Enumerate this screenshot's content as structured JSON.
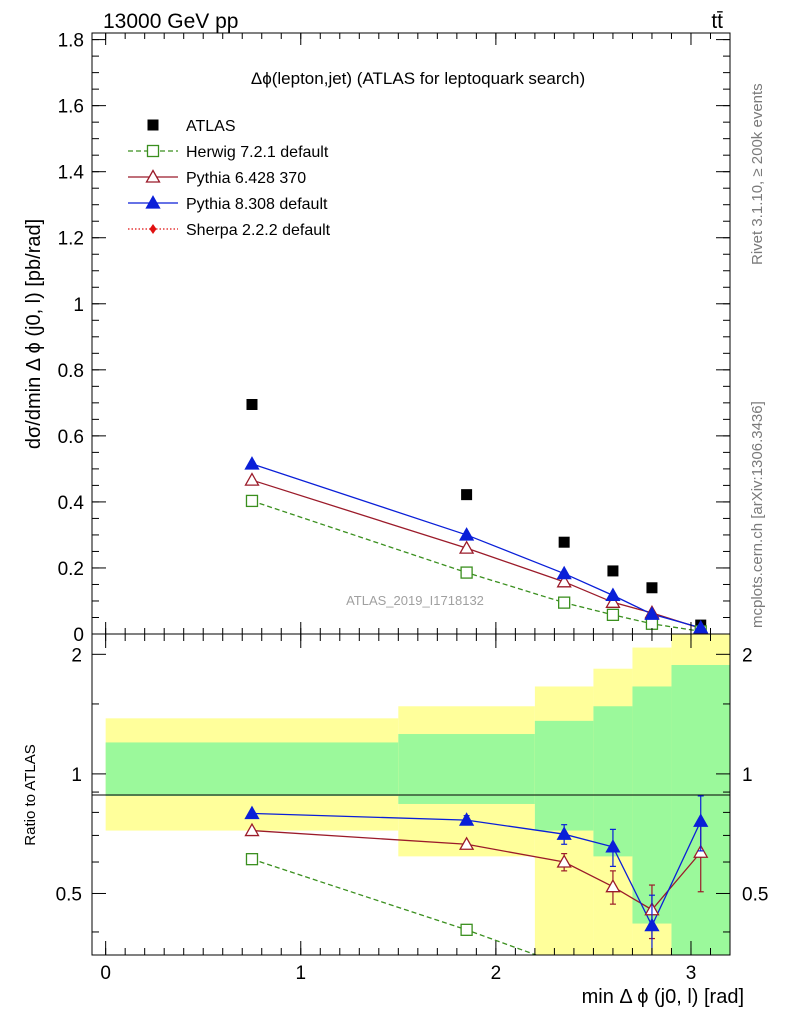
{
  "header": {
    "energy": "13000 GeV pp",
    "process": "tt̄"
  },
  "side_labels": {
    "rivet": "Rivet 3.1.10, ≥ 200k events",
    "mcplots": "mcplots.cern.ch [arXiv:1306.3436]"
  },
  "colors": {
    "atlas": "#000000",
    "herwig": "#3a8f1e",
    "pythia6": "#9b1b2a",
    "pythia8": "#0a1fd8",
    "sherpa": "#e01010",
    "band_inner": "#9bf99b",
    "band_outer": "#ffff9b"
  },
  "chart_data": [
    {
      "type": "scatter",
      "panel": "main",
      "title": "Δϕ(lepton,jet) (ATLAS for leptoquark search)",
      "ylabel": "dσ/dmin Δ ϕ (j0, l) [pb/rad]",
      "watermark": "ATLAS_2019_I1718132",
      "xlim": [
        -0.07,
        3.2
      ],
      "ylim": [
        0,
        1.82
      ],
      "yticks": [
        0,
        0.2,
        0.4,
        0.6,
        0.8,
        1,
        1.2,
        1.4,
        1.6,
        1.8
      ],
      "ytick_labels": [
        "0",
        "0.2",
        "0.4",
        "0.6",
        "0.8",
        "1",
        "1.2",
        "1.4",
        "1.6",
        "1.8"
      ],
      "legend_position": "top-left",
      "series": [
        {
          "name": "ATLAS",
          "key": "atlas",
          "marker": "square-filled",
          "line": "none",
          "x": [
            0.75,
            1.85,
            2.35,
            2.6,
            2.8,
            3.05
          ],
          "y": [
            0.695,
            0.422,
            0.278,
            0.191,
            0.14,
            0.027
          ]
        },
        {
          "name": "Herwig 7.2.1 default",
          "key": "herwig",
          "marker": "square-open",
          "line": "dashed",
          "x": [
            0.75,
            1.85,
            2.35,
            2.6,
            2.8,
            3.05
          ],
          "y": [
            0.403,
            0.186,
            0.095,
            0.058,
            0.031,
            0.008
          ]
        },
        {
          "name": "Pythia 6.428 370",
          "key": "pythia6",
          "marker": "triangle-open",
          "line": "solid",
          "x": [
            0.75,
            1.85,
            2.35,
            2.6,
            2.8,
            3.05
          ],
          "y": [
            0.466,
            0.26,
            0.158,
            0.096,
            0.064,
            0.017
          ]
        },
        {
          "name": "Pythia 8.308 default",
          "key": "pythia8",
          "marker": "triangle-filled",
          "line": "solid",
          "x": [
            0.75,
            1.85,
            2.35,
            2.6,
            2.8,
            3.05
          ],
          "y": [
            0.515,
            0.3,
            0.183,
            0.117,
            0.06,
            0.019
          ]
        },
        {
          "name": "Sherpa 2.2.2 default",
          "key": "sherpa",
          "marker": "diamond-filled",
          "line": "dotted",
          "x": [],
          "y": []
        }
      ]
    },
    {
      "type": "line",
      "panel": "ratio",
      "ylabel": "Ratio to ATLAS",
      "xlabel": "min Δ ϕ (j0, l) [rad]",
      "xlim": [
        -0.07,
        3.2
      ],
      "ylim": [
        0.35,
        2.25
      ],
      "yticks": [
        0.5,
        1,
        2
      ],
      "ytick_labels": [
        "0.5",
        "1",
        "2"
      ],
      "xticks": [
        0,
        1,
        2,
        3
      ],
      "xtick_labels": [
        "0",
        "1",
        "2",
        "3"
      ],
      "reference": 1,
      "bands": [
        {
          "x0": 0.0,
          "x1": 1.5,
          "inner": [
            0.88,
            1.2
          ],
          "outer": [
            0.72,
            1.38
          ]
        },
        {
          "x0": 1.5,
          "x1": 2.2,
          "inner": [
            0.84,
            1.26
          ],
          "outer": [
            0.62,
            1.48
          ]
        },
        {
          "x0": 2.2,
          "x1": 2.5,
          "inner": [
            0.72,
            1.36
          ],
          "outer": [
            0.35,
            1.66
          ]
        },
        {
          "x0": 2.5,
          "x1": 2.7,
          "inner": [
            0.62,
            1.48
          ],
          "outer": [
            0.35,
            1.84
          ]
        },
        {
          "x0": 2.7,
          "x1": 2.9,
          "inner": [
            0.42,
            1.66
          ],
          "outer": [
            0.35,
            2.08
          ]
        },
        {
          "x0": 2.9,
          "x1": 3.2,
          "inner": [
            0.35,
            1.88
          ],
          "outer": [
            0.35,
            2.25
          ]
        }
      ],
      "series": [
        {
          "name": "Herwig 7.2.1 default",
          "key": "herwig",
          "marker": "square-open",
          "line": "dashed",
          "x": [
            0.75,
            1.85,
            2.35
          ],
          "y": [
            0.61,
            0.405,
            0.33
          ],
          "err": [
            0,
            0,
            0
          ]
        },
        {
          "name": "Pythia 6.428 370",
          "key": "pythia6",
          "marker": "triangle-open",
          "line": "solid",
          "x": [
            0.75,
            1.85,
            2.35,
            2.6,
            2.8,
            3.05
          ],
          "y": [
            0.72,
            0.665,
            0.6,
            0.52,
            0.455,
            0.635
          ],
          "err": [
            0,
            0,
            0.03,
            0.05,
            0.07,
            0.13
          ]
        },
        {
          "name": "Pythia 8.308 default",
          "key": "pythia8",
          "marker": "triangle-filled",
          "line": "solid",
          "x": [
            0.75,
            1.85,
            2.35,
            2.6,
            2.8,
            3.05
          ],
          "y": [
            0.795,
            0.765,
            0.705,
            0.655,
            0.415,
            0.76
          ],
          "err": [
            0,
            0.02,
            0.04,
            0.07,
            0.08,
            0.12
          ]
        }
      ]
    }
  ]
}
